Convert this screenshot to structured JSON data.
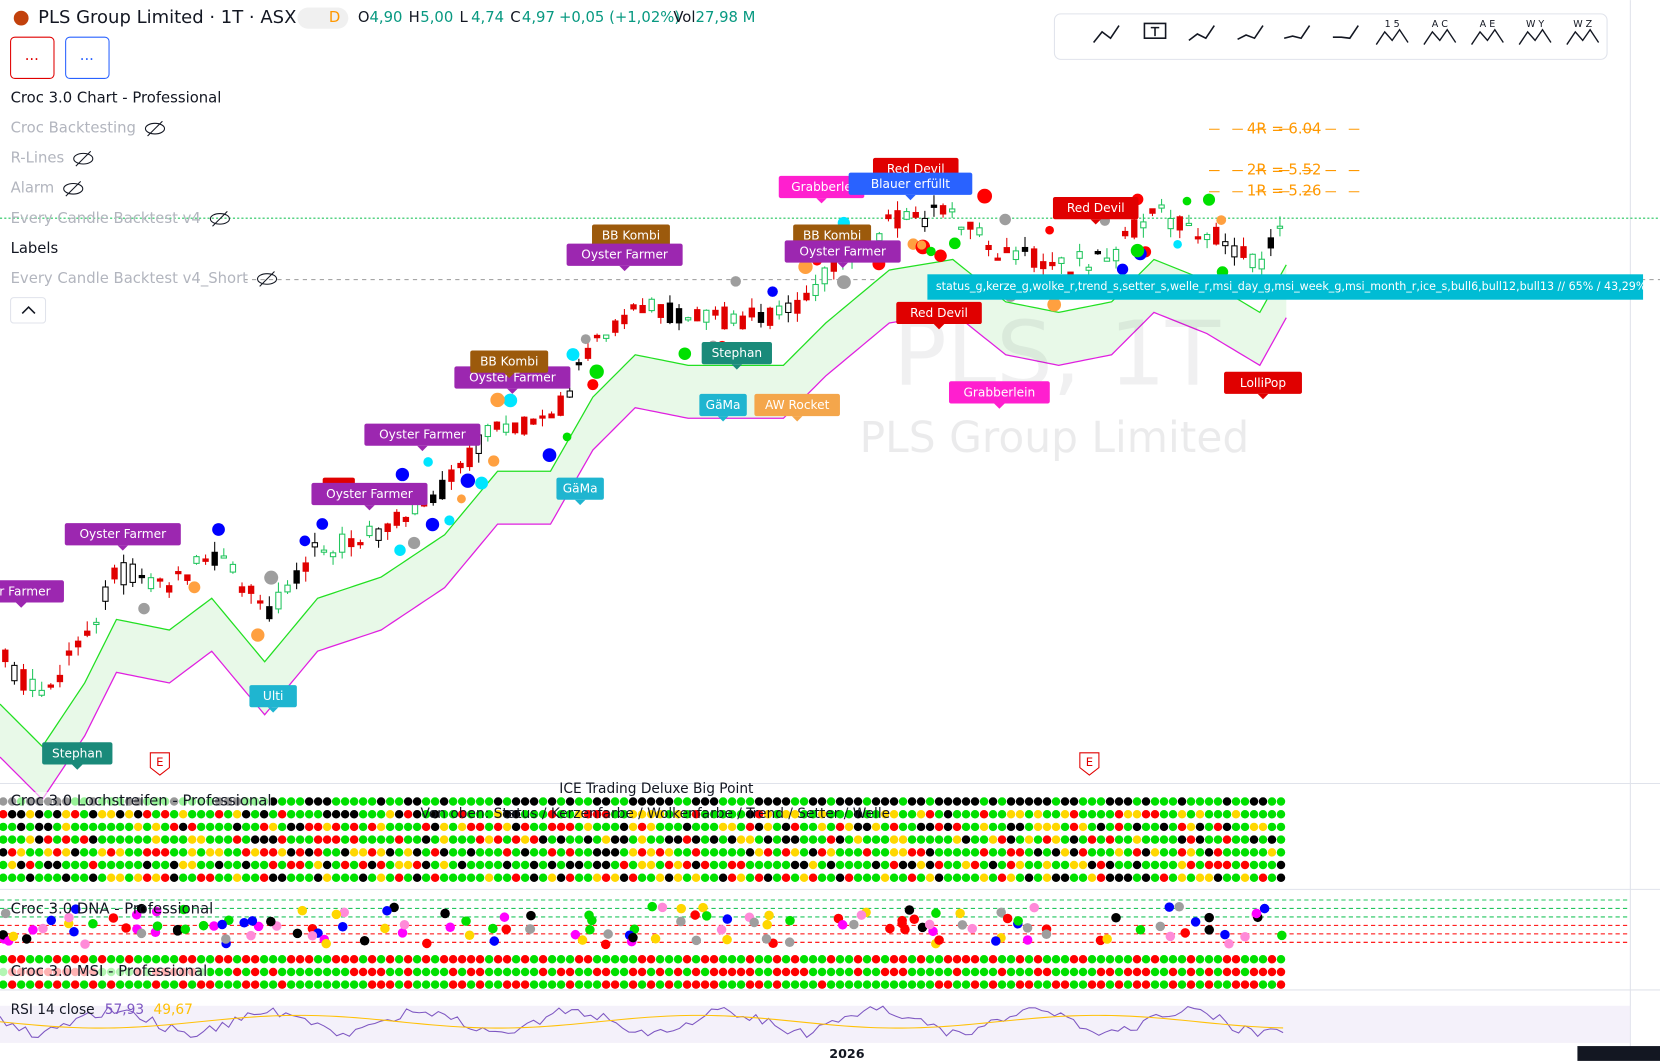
{
  "header": {
    "symbol": "PLS Group Limited · 1T · ASX",
    "interval_badge": "D",
    "ohlc": [
      {
        "label": "O",
        "value": "4,90"
      },
      {
        "label": "H",
        "value": "5,00"
      },
      {
        "label": "L",
        "value": "4,74"
      },
      {
        "label": "C",
        "value": "4,97"
      }
    ],
    "change": "+0,05 (+1,02%)",
    "volume_label": "Vol",
    "volume": "27,98 M"
  },
  "buttons": [
    "...",
    "..."
  ],
  "toolbar_waves": [
    "1 5",
    "A C",
    "A E",
    "W Y",
    "W Z"
  ],
  "indicators": [
    {
      "name": "Croc 3.0 Chart - Professional",
      "hidden": false
    },
    {
      "name": "Croc Backtesting",
      "hidden": true
    },
    {
      "name": "R-Lines",
      "hidden": true
    },
    {
      "name": "Alarm",
      "hidden": true
    },
    {
      "name": "Every Candle Backtest v4",
      "hidden": true
    },
    {
      "name": "Labels",
      "hidden": false
    },
    {
      "name": "Every Candle Backtest v4_Short",
      "hidden": true
    }
  ],
  "levels": [
    "4R = 6.04",
    "2R = 5.52",
    "1R = 5.26"
  ],
  "watermark": {
    "symbol": "PLS, 1T",
    "name": "PLS Group Limited"
  },
  "labels": [
    {
      "text": "er Farmer",
      "color": "#9c27b0"
    },
    {
      "text": "Oyster Farmer",
      "color": "#9c27b0"
    },
    {
      "text": "Ulti",
      "color": "#1fb5d0"
    },
    {
      "text": "Stephan",
      "color": "#1a8a7a"
    },
    {
      "text": "Re",
      "color": "#e00000"
    },
    {
      "text": "Oyster Farmer",
      "color": "#9c27b0"
    },
    {
      "text": "Oyster Farmer",
      "color": "#9c27b0"
    },
    {
      "text": "BB Kombi",
      "color": "#9c5a0c"
    },
    {
      "text": "Oyster Farmer",
      "color": "#9c27b0"
    },
    {
      "text": "GäMa",
      "color": "#1fb5d0"
    },
    {
      "text": "BB Kombi",
      "color": "#9c5a0c"
    },
    {
      "text": "Oyster Farmer",
      "color": "#9c27b0"
    },
    {
      "text": "Stephan",
      "color": "#1a8a7a"
    },
    {
      "text": "GäMa",
      "color": "#1fb5d0"
    },
    {
      "text": "AW Rocket",
      "color": "#f4a64b"
    },
    {
      "text": "BB Kombi",
      "color": "#9c5a0c"
    },
    {
      "text": "Oyster Farmer",
      "color": "#9c27b0"
    },
    {
      "text": "Grabberle",
      "color": "#ff1fcf"
    },
    {
      "text": "Red Devil",
      "color": "#e00000"
    },
    {
      "text": "Blauer erfüllt",
      "color": "#2962ff"
    },
    {
      "text": "Red Devil",
      "color": "#e00000"
    },
    {
      "text": "Grabberlein",
      "color": "#ff1fcf"
    },
    {
      "text": "Red Devil",
      "color": "#e00000"
    },
    {
      "text": "LolliPop",
      "color": "#e00000"
    }
  ],
  "tooltip": "status_g,kerze_g,wolke_r,trend_s,setter_s,welle_r,msi_day_g,msi_week_g,msi_month_r,ice_s,bull6,bull12,bull13 // 65% / 43,29%",
  "earnings_markers": [
    "E",
    "E"
  ],
  "panes": {
    "lochstreifen": "Croc 3.0 Lochstreifen - Professional",
    "ice_title": "ICE Trading Deluxe Big Point",
    "ice_subtitle": "Von oben: Status / Kerzenfarbe / Wolkenfarbe / Trend / Setter / Welle",
    "dna": "Croc 3.0 DNA - Professional",
    "msi": "Croc 3.0 MSI - Professional",
    "rsi": {
      "label": "RSI 14 close",
      "values": [
        "57,93",
        "49,67"
      ]
    }
  },
  "x_axis": [
    "2026"
  ]
}
